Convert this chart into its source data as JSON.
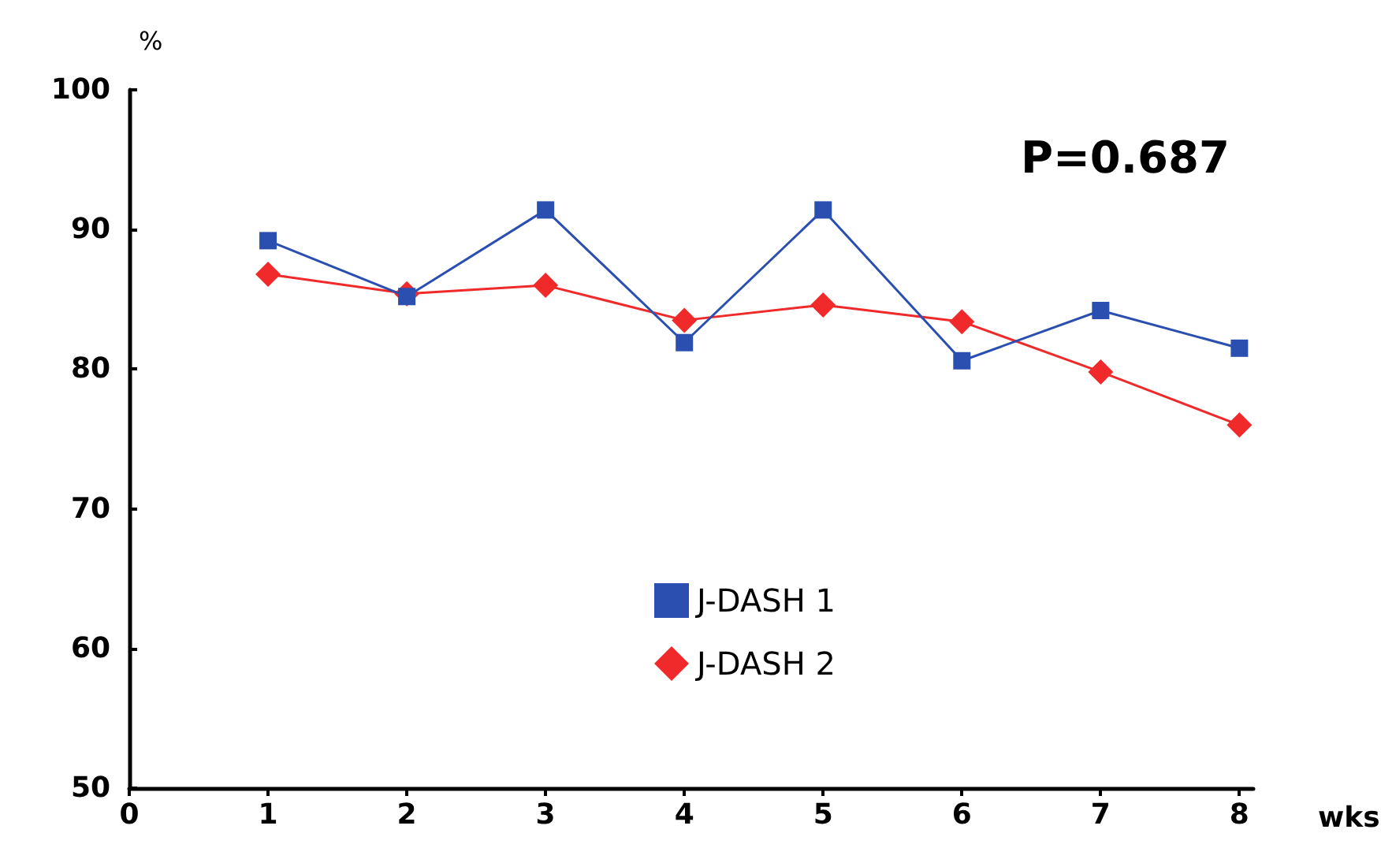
{
  "chart_data": {
    "type": "line",
    "xlabel": "wks",
    "ylabel": "%",
    "annotations": [
      "P=0.687"
    ],
    "x": [
      1,
      2,
      3,
      4,
      5,
      6,
      7,
      8
    ],
    "series": [
      {
        "name": "J-DASH 1",
        "color": "#2b4fb0",
        "marker": "square",
        "values": [
          89.2,
          85.2,
          91.4,
          81.9,
          91.4,
          80.6,
          84.2,
          81.5
        ]
      },
      {
        "name": "J-DASH 2",
        "color": "#f02a2a",
        "marker": "diamond",
        "values": [
          86.8,
          85.4,
          86.0,
          83.5,
          84.6,
          83.4,
          79.8,
          76.0
        ]
      }
    ],
    "xlim": [
      0,
      8.1
    ],
    "xticks": [
      0,
      1,
      2,
      3,
      4,
      5,
      6,
      7,
      8
    ],
    "ylim": [
      50,
      100
    ],
    "yticks": [
      50,
      60,
      70,
      80,
      90,
      100
    ],
    "grid": false,
    "legend": "bottom",
    "line_style": "solid"
  }
}
